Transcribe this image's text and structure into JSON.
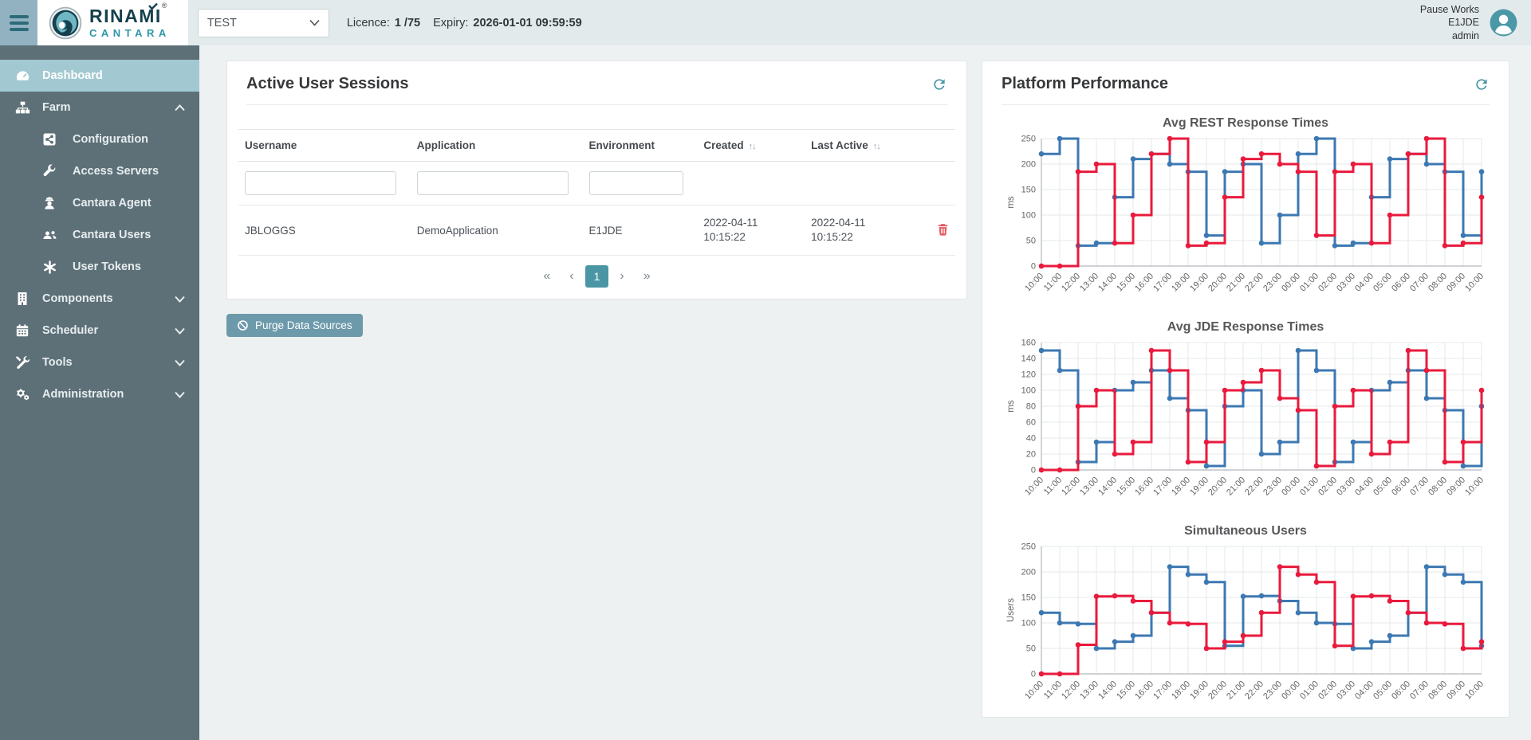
{
  "header": {
    "brand": {
      "line1": "RINAMI",
      "registered": "®",
      "line2": "CANTARA"
    },
    "environment_select": {
      "value": "TEST"
    },
    "licence_label": "Licence:",
    "licence_value": "1 /75",
    "expiry_label": "Expiry:",
    "expiry_value": "2026-01-01 09:59:59",
    "user": {
      "line1": "Pause Works",
      "line2": "E1JDE",
      "line3": "admin"
    }
  },
  "sidebar": {
    "items": [
      {
        "label": "Dashboard"
      },
      {
        "label": "Farm"
      },
      {
        "label": "Configuration"
      },
      {
        "label": "Access Servers"
      },
      {
        "label": "Cantara Agent"
      },
      {
        "label": "Cantara Users"
      },
      {
        "label": "User Tokens"
      },
      {
        "label": "Components"
      },
      {
        "label": "Scheduler"
      },
      {
        "label": "Tools"
      },
      {
        "label": "Administration"
      }
    ]
  },
  "sessions_panel": {
    "title": "Active User Sessions",
    "columns": [
      "Username",
      "Application",
      "Environment",
      "Created",
      "Last Active"
    ],
    "rows": [
      {
        "username": "JBLOGGS",
        "application": "DemoApplication",
        "environment": "E1JDE",
        "created_date": "2022-04-11",
        "created_time": "10:15:22",
        "last_active_date": "2022-04-11",
        "last_active_time": "10:15:22"
      }
    ],
    "pagination": {
      "first": "«",
      "prev": "‹",
      "page": "1",
      "next": "›",
      "last": "»"
    },
    "purge_button": "Purge Data Sources"
  },
  "performance_panel": {
    "title": "Platform Performance"
  },
  "colors": {
    "accent": "#4b97a6",
    "line_blue": "#3c78b2",
    "line_red": "#e91a3c",
    "danger": "#e25c65"
  },
  "chart_data": [
    {
      "type": "line",
      "title": "Avg REST Response Times",
      "xlabel": "",
      "ylabel": "ms",
      "ylim": [
        0,
        250
      ],
      "ytick": 50,
      "step": true,
      "grid": true,
      "legend": "none",
      "categories": [
        "10:00",
        "11:00",
        "12:00",
        "13:00",
        "14:00",
        "15:00",
        "16:00",
        "17:00",
        "18:00",
        "19:00",
        "20:00",
        "21:00",
        "22:00",
        "23:00",
        "00:00",
        "01:00",
        "02:00",
        "03:00",
        "04:00",
        "05:00",
        "06:00",
        "07:00",
        "08:00",
        "09:00",
        "10:00"
      ],
      "series": [
        {
          "name": "series-blue",
          "color": "#3c78b2",
          "values": [
            220,
            250,
            40,
            45,
            135,
            210,
            220,
            200,
            185,
            60,
            185,
            200,
            45,
            100,
            220,
            250,
            40,
            45,
            135,
            210,
            220,
            200,
            185,
            60,
            185
          ]
        },
        {
          "name": "series-red",
          "color": "#e91a3c",
          "values": [
            0,
            0,
            185,
            200,
            45,
            100,
            220,
            250,
            40,
            45,
            135,
            210,
            220,
            200,
            185,
            60,
            185,
            200,
            45,
            100,
            220,
            250,
            40,
            45,
            135
          ]
        }
      ]
    },
    {
      "type": "line",
      "title": "Avg JDE Response Times",
      "xlabel": "",
      "ylabel": "ms",
      "ylim": [
        0,
        160
      ],
      "ytick": 20,
      "step": true,
      "grid": true,
      "legend": "none",
      "categories": [
        "10:00",
        "11:00",
        "12:00",
        "13:00",
        "14:00",
        "15:00",
        "16:00",
        "17:00",
        "18:00",
        "19:00",
        "20:00",
        "21:00",
        "22:00",
        "23:00",
        "00:00",
        "01:00",
        "02:00",
        "03:00",
        "04:00",
        "05:00",
        "06:00",
        "07:00",
        "08:00",
        "09:00",
        "10:00"
      ],
      "series": [
        {
          "name": "series-blue",
          "color": "#3c78b2",
          "values": [
            150,
            125,
            10,
            35,
            100,
            110,
            125,
            90,
            75,
            5,
            80,
            100,
            20,
            35,
            150,
            125,
            10,
            35,
            100,
            110,
            125,
            90,
            75,
            5,
            80
          ]
        },
        {
          "name": "series-red",
          "color": "#e91a3c",
          "values": [
            0,
            0,
            80,
            100,
            20,
            35,
            150,
            125,
            10,
            35,
            100,
            110,
            125,
            90,
            75,
            5,
            80,
            100,
            20,
            35,
            150,
            125,
            10,
            35,
            100
          ]
        }
      ]
    },
    {
      "type": "line",
      "title": "Simultaneous Users",
      "xlabel": "",
      "ylabel": "Users",
      "ylim": [
        0,
        250
      ],
      "ytick": 50,
      "step": true,
      "grid": true,
      "legend": "none",
      "categories": [
        "10:00",
        "11:00",
        "12:00",
        "13:00",
        "14:00",
        "15:00",
        "16:00",
        "17:00",
        "18:00",
        "19:00",
        "20:00",
        "21:00",
        "22:00",
        "23:00",
        "00:00",
        "01:00",
        "02:00",
        "03:00",
        "04:00",
        "05:00",
        "06:00",
        "07:00",
        "08:00",
        "09:00",
        "10:00"
      ],
      "series": [
        {
          "name": "series-blue",
          "color": "#3c78b2",
          "values": [
            120,
            100,
            98,
            50,
            63,
            75,
            120,
            210,
            195,
            180,
            55,
            152,
            153,
            143,
            120,
            100,
            98,
            50,
            63,
            75,
            120,
            210,
            195,
            180,
            55
          ]
        },
        {
          "name": "series-red",
          "color": "#e91a3c",
          "values": [
            0,
            0,
            57,
            152,
            153,
            143,
            120,
            100,
            98,
            50,
            63,
            75,
            120,
            210,
            195,
            180,
            55,
            152,
            153,
            143,
            120,
            100,
            98,
            50,
            63
          ]
        }
      ]
    }
  ]
}
